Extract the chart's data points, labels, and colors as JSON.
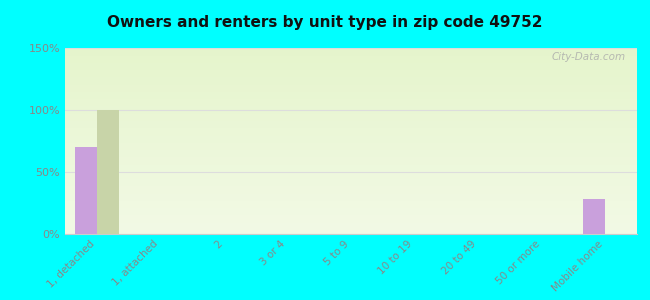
{
  "title": "Owners and renters by unit type in zip code 49752",
  "categories": [
    "1, detached",
    "1, attached",
    "2",
    "3 or 4",
    "5 to 9",
    "10 to 19",
    "20 to 49",
    "50 or more",
    "Mobile home"
  ],
  "owner_values": [
    70,
    0,
    0,
    0,
    0,
    0,
    0,
    0,
    28
  ],
  "renter_values": [
    100,
    0,
    0,
    0,
    0,
    0,
    0,
    0,
    0
  ],
  "owner_color": "#c9a0dc",
  "renter_color": "#c8d4a8",
  "background_color": "#00ffff",
  "ylim": [
    0,
    150
  ],
  "yticks": [
    0,
    50,
    100,
    150
  ],
  "ytick_labels": [
    "0%",
    "50%",
    "100%",
    "150%"
  ],
  "watermark": "City-Data.com",
  "bar_width": 0.35,
  "tick_color": "#888888",
  "grid_color": "#dddddd"
}
